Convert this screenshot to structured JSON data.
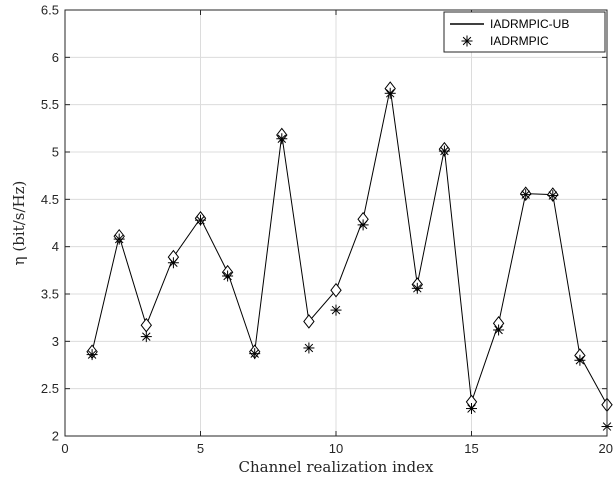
{
  "chart_data": {
    "type": "line",
    "xlabel": "Channel realization index",
    "ylabel": "η (bit/s/Hz)",
    "xlim": [
      0,
      20
    ],
    "ylim": [
      2,
      6.5
    ],
    "xticks": [
      0,
      5,
      10,
      15,
      20
    ],
    "yticks": [
      2,
      2.5,
      3,
      3.5,
      4,
      4.5,
      5,
      5.5,
      6,
      6.5
    ],
    "grid": true,
    "legend_position": "top-right",
    "x": [
      1,
      2,
      3,
      4,
      5,
      6,
      7,
      8,
      9,
      10,
      11,
      12,
      13,
      14,
      15,
      16,
      17,
      18,
      19,
      20
    ],
    "series": [
      {
        "name": "IADRMPIC-UB",
        "style": "solid line with diamond markers",
        "color": "#000000",
        "values": [
          2.89,
          4.11,
          3.17,
          3.89,
          4.3,
          3.73,
          2.89,
          5.18,
          3.21,
          3.54,
          4.29,
          5.67,
          3.6,
          5.03,
          2.36,
          3.19,
          4.56,
          4.55,
          2.85,
          2.33
        ]
      },
      {
        "name": "IADRMPIC",
        "style": "asterisk markers",
        "color": "#000000",
        "values": [
          2.86,
          4.08,
          3.05,
          3.83,
          4.28,
          3.69,
          2.87,
          5.14,
          2.93,
          3.33,
          4.23,
          5.62,
          3.56,
          5.01,
          2.29,
          3.12,
          4.55,
          4.54,
          2.8,
          2.1
        ]
      }
    ]
  }
}
